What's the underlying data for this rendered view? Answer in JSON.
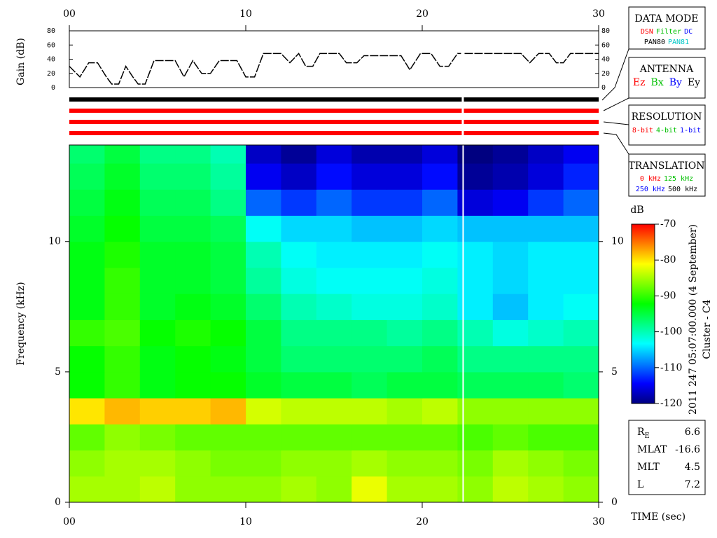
{
  "chart_data": [
    {
      "type": "line",
      "ylabel": "Gain (dB)",
      "color": "#000000",
      "x": [
        0,
        0.6,
        1.1,
        1.6,
        2.1,
        2.4,
        2.8,
        3.2,
        3.6,
        3.9,
        4.3,
        4.8,
        6,
        6.5,
        7,
        7.5,
        8,
        8.5,
        9.5,
        10,
        10.5,
        11,
        12,
        12.5,
        13,
        13.4,
        13.8,
        14.2,
        15.3,
        15.7,
        16.3,
        16.7,
        18.8,
        19.3,
        19.9,
        20.5,
        21,
        21.5,
        22,
        22.2,
        22.3,
        22.4,
        25.6,
        26.1,
        26.6,
        27.2,
        27.6,
        28,
        28.4,
        30
      ],
      "values": [
        30,
        15,
        35,
        35,
        15,
        5,
        5,
        30,
        15,
        5,
        5,
        38,
        38,
        15,
        38,
        20,
        20,
        38,
        38,
        15,
        15,
        48,
        48,
        35,
        48,
        30,
        30,
        48,
        48,
        35,
        35,
        45,
        45,
        25,
        48,
        48,
        30,
        30,
        48,
        48,
        null,
        48,
        48,
        35,
        48,
        48,
        35,
        35,
        48,
        48
      ],
      "xlim": [
        0,
        30
      ],
      "xticks": [
        {
          "value": 0,
          "label": "00"
        },
        10,
        20,
        30
      ],
      "ylim": [
        0,
        80
      ],
      "yticks": [
        0,
        20,
        40,
        60,
        80
      ]
    },
    {
      "type": "heatmap",
      "ylabel": "Frequency (kHz)",
      "xlabel": "TIME (sec)",
      "zlabel": "dB",
      "xbins": [
        0,
        2,
        4,
        6,
        8,
        10,
        12,
        14,
        16,
        18,
        20,
        22,
        24,
        26,
        28,
        30
      ],
      "ybins": [
        0,
        1,
        2,
        3,
        4,
        5,
        6,
        7,
        8,
        9,
        10,
        11,
        12,
        13,
        14
      ],
      "z": [
        [
          -85,
          -85,
          -84,
          -86,
          -86,
          -86,
          -85,
          -86,
          -82,
          -85,
          -85,
          -86,
          -84,
          -85,
          -86
        ],
        [
          -86,
          -85,
          -85,
          -86,
          -87,
          -87,
          -86,
          -86,
          -85,
          -86,
          -86,
          -87,
          -85,
          -86,
          -87
        ],
        [
          -88,
          -86,
          -87,
          -88,
          -88,
          -88,
          -88,
          -88,
          -88,
          -88,
          -88,
          -89,
          -88,
          -89,
          -89
        ],
        [
          -80,
          -78,
          -79,
          -79,
          -78,
          -83,
          -84,
          -84,
          -84,
          -85,
          -84,
          -86,
          -86,
          -86,
          -86
        ],
        [
          -92,
          -90,
          -93,
          -92,
          -92,
          -94,
          -95,
          -95,
          -96,
          -95,
          -95,
          -96,
          -96,
          -96,
          -97
        ],
        [
          -92,
          -90,
          -93,
          -92,
          -93,
          -95,
          -97,
          -97,
          -97,
          -97,
          -96,
          -98,
          -98,
          -98,
          -98
        ],
        [
          -90,
          -89,
          -92,
          -91,
          -92,
          -95,
          -98,
          -98,
          -98,
          -99,
          -98,
          -100,
          -102,
          -101,
          -100
        ],
        [
          -93,
          -90,
          -94,
          -93,
          -94,
          -97,
          -100,
          -101,
          -102,
          -102,
          -101,
          -104,
          -106,
          -104,
          -103
        ],
        [
          -93,
          -90,
          -94,
          -94,
          -95,
          -99,
          -102,
          -103,
          -103,
          -103,
          -102,
          -104,
          -105,
          -104,
          -104
        ],
        [
          -93,
          -91,
          -94,
          -94,
          -95,
          -100,
          -103,
          -104,
          -104,
          -104,
          -103,
          -104,
          -105,
          -104,
          -104
        ],
        [
          -94,
          -92,
          -95,
          -95,
          -96,
          -103,
          -105,
          -105,
          -106,
          -106,
          -105,
          -106,
          -106,
          -106,
          -106
        ],
        [
          -95,
          -93,
          -96,
          -96,
          -98,
          -110,
          -112,
          -110,
          -112,
          -112,
          -110,
          -116,
          -115,
          -112,
          -110
        ],
        [
          -96,
          -94,
          -97,
          -97,
          -99,
          -115,
          -117,
          -114,
          -116,
          -116,
          -114,
          -119,
          -118,
          -116,
          -113
        ],
        [
          -97,
          -95,
          -98,
          -98,
          -100,
          -117,
          -119,
          -116,
          -118,
          -118,
          -116,
          -120,
          -119,
          -117,
          -115
        ]
      ],
      "xlim": [
        0,
        30
      ],
      "xticks": [
        {
          "value": 0,
          "label": "00"
        },
        10,
        20,
        30
      ],
      "ylim": [
        0,
        13.7
      ],
      "yticks": [
        0,
        5,
        10
      ],
      "zlim": [
        -120,
        -70
      ],
      "zticks": [
        -70,
        -80,
        -90,
        -100,
        -110,
        -120
      ],
      "colormap": [
        "#000080",
        "#0000ff",
        "#0080ff",
        "#00ffff",
        "#00ff80",
        "#00ff00",
        "#80ff00",
        "#ffff00",
        "#ff8000",
        "#ff0000"
      ]
    }
  ],
  "status_bars": [
    {
      "color": "#000000"
    },
    {
      "color": "#ff0000"
    },
    {
      "color": "#ff0000"
    },
    {
      "color": "#ff0000"
    }
  ],
  "panels": [
    {
      "title": "DATA MODE",
      "rows": [
        [
          {
            "text": "DSN",
            "color": "#ff0000"
          },
          {
            "text": "Filter",
            "color": "#00c000"
          },
          {
            "text": "DC",
            "color": "#0000ff"
          }
        ],
        [
          {
            "text": "PAN80",
            "color": "#000000"
          },
          {
            "text": "PAN81",
            "color": "#00c8c8"
          }
        ]
      ]
    },
    {
      "title": "ANTENNA",
      "rows": [
        [
          {
            "text": "Ez",
            "color": "#ff0000"
          },
          {
            "text": "Bx",
            "color": "#00c000"
          },
          {
            "text": "By",
            "color": "#0000ff"
          },
          {
            "text": "Ey",
            "color": "#000000"
          }
        ]
      ]
    },
    {
      "title": "RESOLUTION",
      "rows": [
        [
          {
            "text": "8-bit",
            "color": "#ff0000"
          },
          {
            "text": "4-bit",
            "color": "#00c000"
          },
          {
            "text": "1-bit",
            "color": "#0000ff"
          }
        ]
      ]
    },
    {
      "title": "TRANSLATION",
      "rows": [
        [
          {
            "text": "0 kHz",
            "color": "#ff0000"
          },
          {
            "text": "125 kHz",
            "color": "#00c000"
          }
        ],
        [
          {
            "text": "250 kHz",
            "color": "#0000ff"
          },
          {
            "text": "500 kHz",
            "color": "#000000"
          }
        ]
      ]
    }
  ],
  "info": [
    {
      "label": "R",
      "sub": "E",
      "value": 6.6
    },
    {
      "label": "MLAT",
      "value": -16.6
    },
    {
      "label": "MLT",
      "value": 4.5
    },
    {
      "label": "L",
      "value": 7.2
    }
  ],
  "timestamp": "2011 247 05:07:00.000 (4 September)",
  "spacecraft": "Cluster - C4"
}
